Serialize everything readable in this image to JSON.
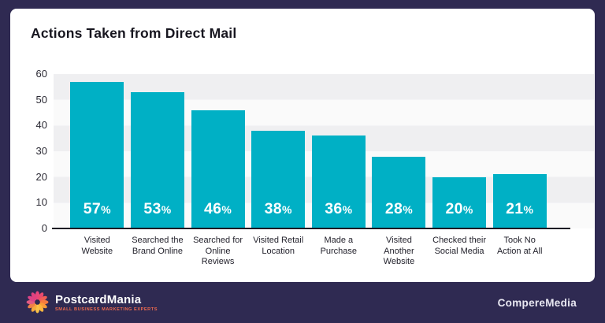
{
  "chart": {
    "title": "Actions Taken from Direct Mail",
    "percent_suffix": "%"
  },
  "chart_data": {
    "type": "bar",
    "title": "Actions Taken from Direct Mail",
    "categories": [
      "Visited Website",
      "Searched the Brand Online",
      "Searched for Online Reviews",
      "Visited Retail Location",
      "Made a Purchase",
      "Visited Another Website",
      "Checked their Social Media",
      "Took No Action at All"
    ],
    "values": [
      57,
      53,
      46,
      38,
      36,
      28,
      20,
      21
    ],
    "value_labels": [
      "57%",
      "53%",
      "46%",
      "38%",
      "36%",
      "28%",
      "20%",
      "21%"
    ],
    "xlabel": "",
    "ylabel": "",
    "ylim": [
      0,
      60
    ],
    "yticks": [
      0,
      10,
      20,
      30,
      40,
      50,
      60
    ],
    "grid": "horizontal-bands",
    "legend": "none",
    "bar_color": "#00b0c5",
    "value_label_color": "#ffffff"
  },
  "footer": {
    "brand": "PostcardMania",
    "tagline": "SMALL BUSINESS MARKETING EXPERTS",
    "attribution": "CompereMedia"
  },
  "icons": {
    "logo": "starburst-flower-icon"
  },
  "colors": {
    "background": "#2f2a52",
    "card": "#ffffff",
    "bar": "#00b0c5",
    "band_dark": "#efeff1",
    "band_light": "#fafafa",
    "axis_line": "#1b1a24",
    "title_text": "#17161f",
    "tagline_text": "#ee6a4f"
  }
}
